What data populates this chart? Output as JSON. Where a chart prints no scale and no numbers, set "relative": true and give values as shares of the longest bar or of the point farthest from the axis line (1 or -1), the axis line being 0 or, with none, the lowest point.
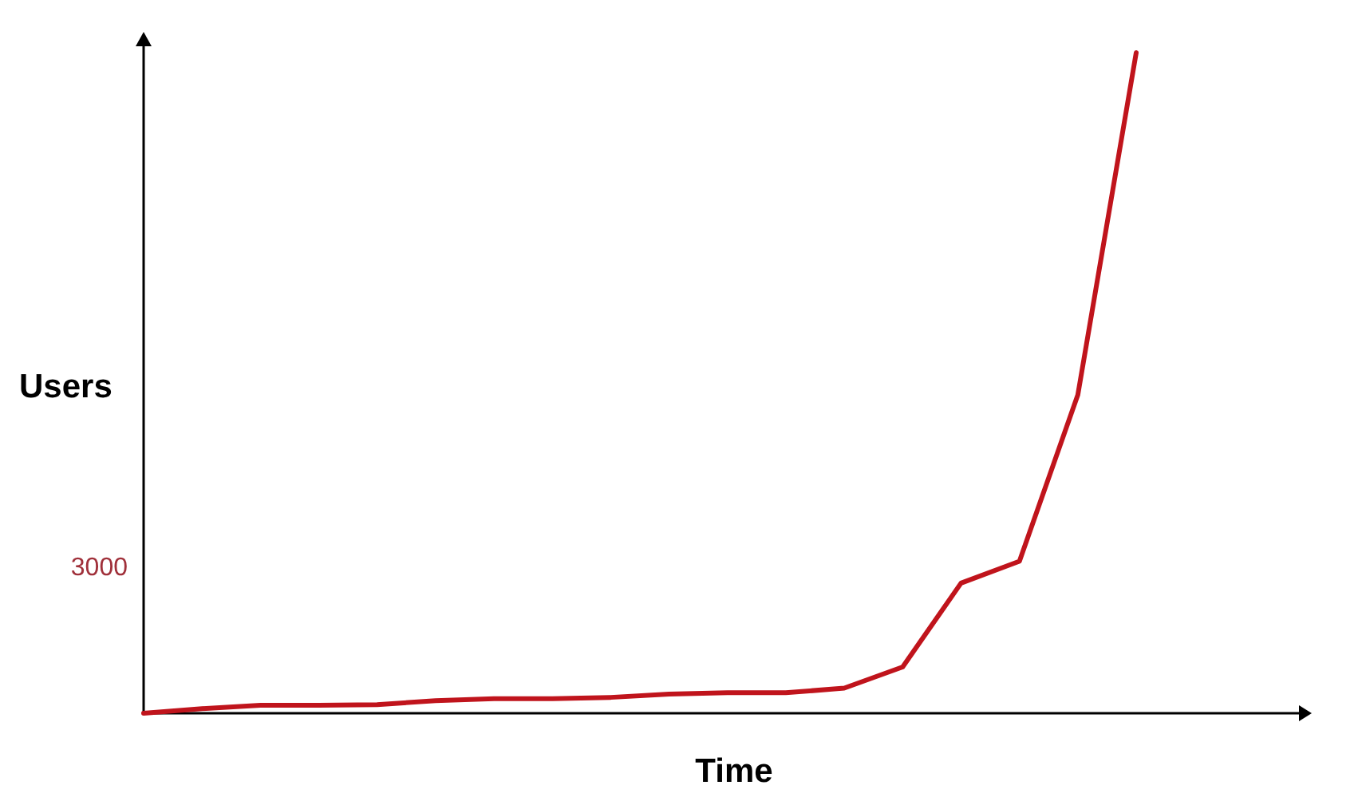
{
  "chart_data": {
    "type": "line",
    "xlabel": "Time",
    "ylabel": "Users",
    "relative": true,
    "marker": "none",
    "line_style": "solid",
    "annotations": [
      "3000"
    ],
    "categories": [
      null,
      null,
      null,
      null,
      null,
      null,
      null,
      null,
      null,
      null,
      null,
      null,
      null,
      null,
      null,
      null,
      null,
      null
    ],
    "series": [
      {
        "color": "#c0141c",
        "values": [
          0,
          0.007,
          0.012,
          0.012,
          0.013,
          0.019,
          0.022,
          0.022,
          0.024,
          0.029,
          0.031,
          0.031,
          0.038,
          0.07,
          0.197,
          0.23,
          0.482,
          1
        ]
      }
    ]
  }
}
